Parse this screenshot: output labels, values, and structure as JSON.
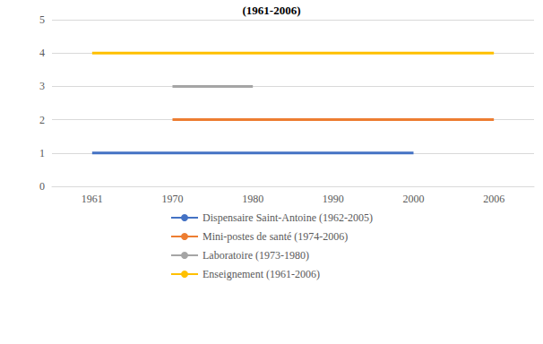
{
  "chart_data": {
    "type": "line",
    "title": "(1961-2006)",
    "categories": [
      "1961",
      "1970",
      "1980",
      "1990",
      "2000",
      "2006"
    ],
    "series": [
      {
        "name": "Dispensaire Saint-Antoine (1962-2005)",
        "color": "#4472c4",
        "values": [
          1,
          1,
          1,
          1,
          1,
          null
        ]
      },
      {
        "name": "Mini-postes de santé (1974-2006)",
        "color": "#ed7d31",
        "values": [
          null,
          2,
          2,
          2,
          2,
          2
        ]
      },
      {
        "name": "Laboratoire (1973-1980)",
        "color": "#a5a5a5",
        "values": [
          null,
          3,
          3,
          null,
          null,
          null
        ]
      },
      {
        "name": "Enseignement (1961-2006)",
        "color": "#ffc000",
        "values": [
          4,
          4,
          4,
          4,
          4,
          4
        ]
      }
    ],
    "ylim": [
      0,
      5
    ],
    "yticks": [
      0,
      1,
      2,
      3,
      4,
      5
    ],
    "grid": true,
    "legend": "bottom"
  }
}
